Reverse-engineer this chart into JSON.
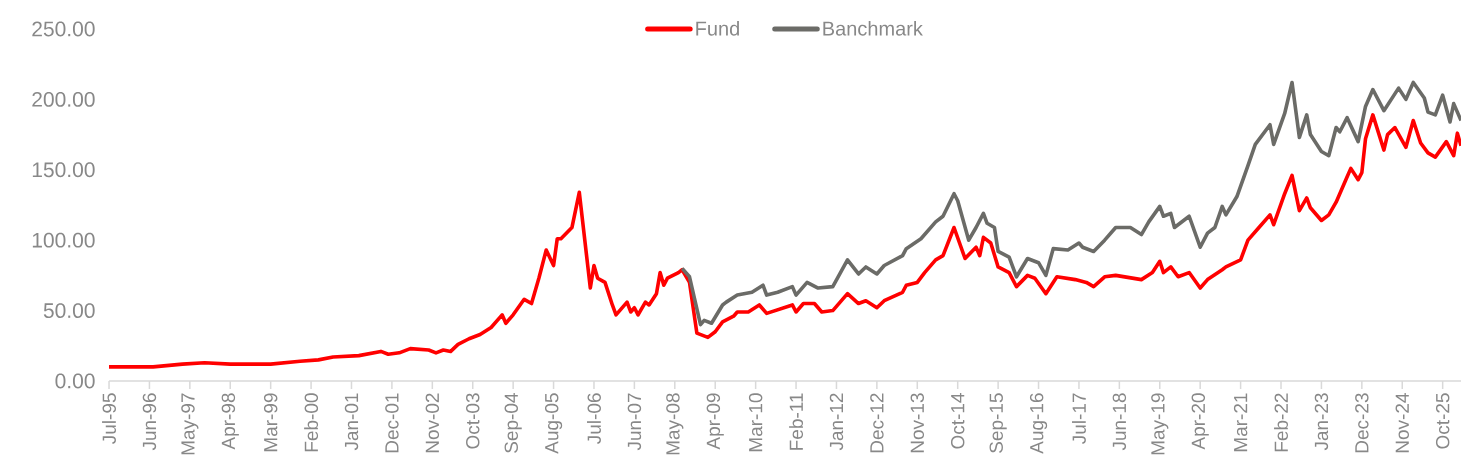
{
  "chart_data": {
    "type": "line",
    "legend": "top",
    "marker": "none",
    "line_style": "solid",
    "xlim": [
      "1995-07",
      "2026-03"
    ],
    "ylim": [
      0,
      250
    ],
    "yticks": [
      {
        "value": 0,
        "label": "0.00"
      },
      {
        "value": 50,
        "label": "50.00"
      },
      {
        "value": 100,
        "label": "100.00"
      },
      {
        "value": 150,
        "label": "150.00"
      },
      {
        "value": 200,
        "label": "200.00"
      },
      {
        "value": 250,
        "label": "250.00"
      }
    ],
    "xticks": [
      {
        "value": "1995-07",
        "label": "Jul-95"
      },
      {
        "value": "1996-06",
        "label": "Jun-96"
      },
      {
        "value": "1997-05",
        "label": "May-97"
      },
      {
        "value": "1998-04",
        "label": "Apr-98"
      },
      {
        "value": "1999-03",
        "label": "Mar-99"
      },
      {
        "value": "2000-02",
        "label": "Feb-00"
      },
      {
        "value": "2001-01",
        "label": "Jan-01"
      },
      {
        "value": "2001-12",
        "label": "Dec-01"
      },
      {
        "value": "2002-11",
        "label": "Nov-02"
      },
      {
        "value": "2003-10",
        "label": "Oct-03"
      },
      {
        "value": "2004-09",
        "label": "Sep-04"
      },
      {
        "value": "2005-08",
        "label": "Aug-05"
      },
      {
        "value": "2006-07",
        "label": "Jul-06"
      },
      {
        "value": "2007-06",
        "label": "Jun-07"
      },
      {
        "value": "2008-05",
        "label": "May-08"
      },
      {
        "value": "2009-04",
        "label": "Apr-09"
      },
      {
        "value": "2010-03",
        "label": "Mar-10"
      },
      {
        "value": "2011-02",
        "label": "Feb-11"
      },
      {
        "value": "2012-01",
        "label": "Jan-12"
      },
      {
        "value": "2012-12",
        "label": "Dec-12"
      },
      {
        "value": "2013-11",
        "label": "Nov-13"
      },
      {
        "value": "2014-10",
        "label": "Oct-14"
      },
      {
        "value": "2015-09",
        "label": "Sep-15"
      },
      {
        "value": "2016-08",
        "label": "Aug-16"
      },
      {
        "value": "2017-07",
        "label": "Jul-17"
      },
      {
        "value": "2018-06",
        "label": "Jun-18"
      },
      {
        "value": "2019-05",
        "label": "May-19"
      },
      {
        "value": "2020-04",
        "label": "Apr-20"
      },
      {
        "value": "2021-03",
        "label": "Mar-21"
      },
      {
        "value": "2022-02",
        "label": "Feb-22"
      },
      {
        "value": "2023-01",
        "label": "Jan-23"
      },
      {
        "value": "2023-12",
        "label": "Dec-23"
      },
      {
        "value": "2024-11",
        "label": "Nov-24"
      },
      {
        "value": "2025-10",
        "label": "Oct-25"
      }
    ],
    "series": [
      {
        "name": "Fund",
        "color": "#ff0000",
        "x": [
          "1995-07",
          "1996-01",
          "1996-07",
          "1997-03",
          "1997-09",
          "1998-04",
          "1999-03",
          "1999-11",
          "2000-04",
          "2000-08",
          "2001-03",
          "2001-09",
          "2001-11",
          "2002-02",
          "2002-05",
          "2002-10",
          "2002-12",
          "2003-02",
          "2003-04",
          "2003-06",
          "2003-09",
          "2003-12",
          "2004-03",
          "2004-06",
          "2004-07",
          "2004-09",
          "2004-12",
          "2005-02",
          "2005-04",
          "2005-06",
          "2005-08",
          "2005-09",
          "2005-10",
          "2006-01",
          "2006-03",
          "2006-06",
          "2006-07",
          "2006-08",
          "2006-10",
          "2006-12",
          "2007-01",
          "2007-04",
          "2007-05",
          "2007-06",
          "2007-07",
          "2007-09",
          "2007-10",
          "2007-12",
          "2008-01",
          "2008-02",
          "2008-03",
          "2008-06",
          "2008-07",
          "2008-09",
          "2008-11",
          "2009-02",
          "2009-04",
          "2009-06",
          "2009-09",
          "2009-10",
          "2010-01",
          "2010-04",
          "2010-06",
          "2011-01",
          "2011-02",
          "2011-04",
          "2011-07",
          "2011-09",
          "2011-12",
          "2012-04",
          "2012-07",
          "2012-09",
          "2012-12",
          "2013-02",
          "2013-07",
          "2013-08",
          "2013-11",
          "2014-01",
          "2014-04",
          "2014-06",
          "2014-09",
          "2014-12",
          "2015-03",
          "2015-04",
          "2015-05",
          "2015-07",
          "2015-09",
          "2015-12",
          "2016-02",
          "2016-05",
          "2016-07",
          "2016-10",
          "2017-01",
          "2017-06",
          "2017-09",
          "2017-11",
          "2018-02",
          "2018-05",
          "2018-12",
          "2019-03",
          "2019-05",
          "2019-06",
          "2019-08",
          "2019-10",
          "2020-01",
          "2020-04",
          "2020-06",
          "2020-10",
          "2020-11",
          "2021-03",
          "2021-05",
          "2021-08",
          "2021-11",
          "2021-12",
          "2022-03",
          "2022-05",
          "2022-07",
          "2022-09",
          "2022-10",
          "2023-01",
          "2023-03",
          "2023-05",
          "2023-08",
          "2023-09",
          "2023-11",
          "2023-12",
          "2024-01",
          "2024-03",
          "2024-06",
          "2024-07",
          "2024-09",
          "2024-12",
          "2025-02",
          "2025-04",
          "2025-06",
          "2025-08",
          "2025-11",
          "2026-01",
          "2026-02",
          "2026-03"
        ],
        "values": [
          10,
          10,
          10,
          12,
          13,
          12,
          12,
          14,
          15,
          17,
          18,
          21,
          19,
          20,
          23,
          22,
          20,
          22,
          21,
          26,
          30,
          33,
          38,
          47,
          41,
          47,
          58,
          55,
          73,
          93,
          82,
          101,
          101,
          109,
          134,
          66,
          82,
          73,
          70,
          54,
          47,
          56,
          49,
          52,
          47,
          56,
          54,
          62,
          77,
          68,
          73,
          77,
          79,
          70,
          34,
          31,
          35,
          42,
          46,
          49,
          49,
          54,
          48,
          54,
          49,
          55,
          55,
          49,
          50,
          62,
          55,
          57,
          52,
          57,
          63,
          68,
          70,
          77,
          86,
          89,
          109,
          87,
          95,
          89,
          102,
          98,
          81,
          77,
          67,
          75,
          73,
          62,
          74,
          72,
          70,
          67,
          74,
          75,
          72,
          77,
          85,
          77,
          81,
          74,
          77,
          66,
          72,
          79,
          81,
          86,
          100,
          109,
          118,
          111,
          133,
          146,
          121,
          130,
          123,
          114,
          118,
          127,
          145,
          151,
          143,
          148,
          172,
          189,
          164,
          175,
          180,
          166,
          185,
          169,
          162,
          159,
          170,
          160,
          176,
          167
        ]
      },
      {
        "name": "Banchmark",
        "color": "#6b6b67",
        "x": [
          "2008-07",
          "2008-09",
          "2008-12",
          "2009-01",
          "2009-03",
          "2009-06",
          "2009-07",
          "2009-10",
          "2010-02",
          "2010-05",
          "2010-06",
          "2010-09",
          "2011-01",
          "2011-02",
          "2011-05",
          "2011-08",
          "2011-12",
          "2012-04",
          "2012-07",
          "2012-09",
          "2012-12",
          "2013-02",
          "2013-07",
          "2013-08",
          "2013-12",
          "2014-04",
          "2014-06",
          "2014-09",
          "2014-10",
          "2015-01",
          "2015-03",
          "2015-05",
          "2015-06",
          "2015-08",
          "2015-09",
          "2015-12",
          "2016-02",
          "2016-05",
          "2016-08",
          "2016-10",
          "2016-12",
          "2017-04",
          "2017-07",
          "2017-08",
          "2017-11",
          "2018-02",
          "2018-05",
          "2018-09",
          "2018-12",
          "2019-02",
          "2019-05",
          "2019-06",
          "2019-08",
          "2019-09",
          "2020-01",
          "2020-04",
          "2020-06",
          "2020-08",
          "2020-10",
          "2020-11",
          "2021-02",
          "2021-05",
          "2021-07",
          "2021-11",
          "2021-12",
          "2022-03",
          "2022-05",
          "2022-07",
          "2022-09",
          "2022-10",
          "2023-01",
          "2023-03",
          "2023-05",
          "2023-06",
          "2023-08",
          "2023-11",
          "2024-01",
          "2024-03",
          "2024-06",
          "2024-10",
          "2024-12",
          "2025-02",
          "2025-05",
          "2025-06",
          "2025-08",
          "2025-10",
          "2025-12",
          "2026-01",
          "2026-03"
        ],
        "values": [
          80,
          74,
          40,
          43,
          41,
          54,
          56,
          61,
          63,
          68,
          61,
          63,
          67,
          61,
          70,
          66,
          67,
          86,
          76,
          81,
          76,
          82,
          89,
          94,
          101,
          113,
          117,
          133,
          128,
          100,
          109,
          119,
          112,
          109,
          92,
          88,
          74,
          87,
          84,
          75,
          94,
          93,
          98,
          95,
          92,
          100,
          109,
          109,
          104,
          113,
          124,
          117,
          119,
          109,
          117,
          95,
          105,
          109,
          124,
          118,
          131,
          153,
          168,
          182,
          168,
          190,
          212,
          173,
          189,
          175,
          163,
          160,
          180,
          177,
          187,
          170,
          195,
          207,
          192,
          208,
          200,
          212,
          201,
          191,
          189,
          203,
          184,
          197,
          185
        ]
      }
    ]
  }
}
